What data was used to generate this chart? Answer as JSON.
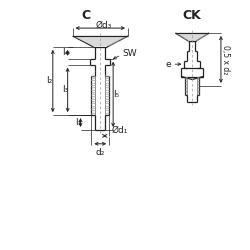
{
  "bg_color": "#ffffff",
  "line_color": "#222222",
  "dim_color": "#222222",
  "title_C": "C",
  "title_CK": "CK",
  "label_d3": "Ød₃",
  "label_d1": "Ød₁",
  "label_d2": "d₂",
  "label_l2": "l₂",
  "label_l4": "l₄",
  "label_l3": "l₃",
  "label_l1": "l₁",
  "label_l5": "l₅",
  "label_SW": "SW",
  "label_e": "e",
  "label_05d2": "0,5 x d₂",
  "font_title": 9,
  "font_label": 6.5
}
